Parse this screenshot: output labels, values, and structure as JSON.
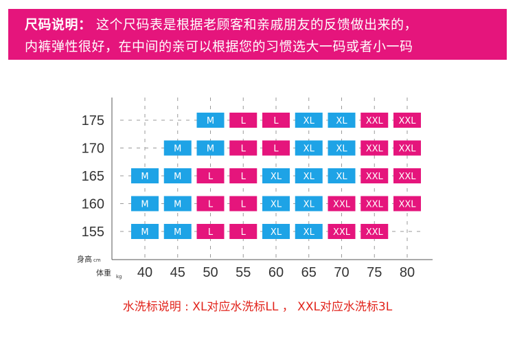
{
  "colors": {
    "banner": "#e5157c",
    "M": "#1ea3e6",
    "L": "#e5157c",
    "XL": "#1ea3e6",
    "XXL": "#e5157c",
    "footnote": "#e1231b"
  },
  "banner": {
    "lead": "尺码说明：",
    "line1_rest": " 这个尺码表是根据老顾客和亲戚朋友的反馈做出来的，",
    "line2": "内裤弹性很好，在中间的亲可以根据您的习惯选大一码或者小一码"
  },
  "chart_data": {
    "type": "table",
    "y_axis": {
      "label": "身高",
      "unit": "cm"
    },
    "x_axis": {
      "label": "体重",
      "unit": "kg"
    },
    "heights": [
      "175",
      "170",
      "165",
      "160",
      "155"
    ],
    "weights": [
      "40",
      "45",
      "50",
      "55",
      "60",
      "65",
      "70",
      "75",
      "80"
    ],
    "grid": [
      [
        null,
        null,
        "M",
        "L",
        "L",
        "XL",
        "XL",
        "XXL",
        "XXL"
      ],
      [
        null,
        "M",
        "M",
        "L",
        "L",
        "XL",
        "XL",
        "XXL",
        "XXL"
      ],
      [
        "M",
        "M",
        "L",
        "L",
        "XL",
        "XL",
        "XL",
        "XXL",
        "XXL"
      ],
      [
        "M",
        "M",
        "L",
        "L",
        "XL",
        "XL",
        "XXL",
        "XXL",
        "XXL"
      ],
      [
        "M",
        "M",
        "L",
        "L",
        "XL",
        "XL",
        "XXL",
        "XXL",
        null
      ]
    ]
  },
  "footnote": "水洗标说明 : XL对应水洗标LL ， XXL对应水洗标3L"
}
